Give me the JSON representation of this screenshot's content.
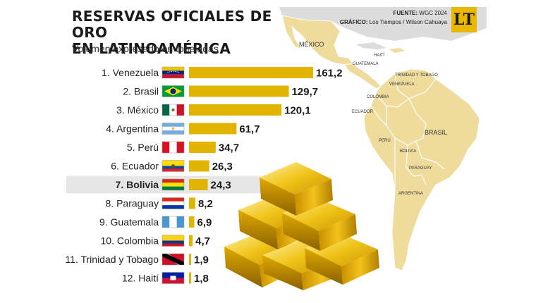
{
  "header": {
    "title_line1": "RESERVAS OFICIALES DE ORO",
    "title_line2": "EN LATINOAMÉRICA",
    "subtitle": "Volumen expresado en toneladas",
    "source_label": "FUENTE:",
    "source_value": "WGC 2024",
    "graphic_label": "GRÁFICO:",
    "graphic_value": "Los Tiempos / Wilson Cahuaya",
    "logo_text": "LT"
  },
  "map_labels": {
    "mexico": "MÉXICO",
    "guatemala": "GUATEMALA",
    "haiti": "HAITÍ",
    "trinidad": "TRINIDAD Y TOBAGO",
    "venezuela": "VENEZUELA",
    "colombia": "COLOMBIA",
    "ecuador": "ECUADOR",
    "peru": "PERÚ",
    "brasil": "BRASIL",
    "bolivia": "BOLIVIA",
    "paraguay": "PARAGUAY",
    "argentina": "ARGENTINA"
  },
  "colors": {
    "bar": "#e0b400",
    "highlight_row": "#e6e6e6",
    "map_land": "#efdc9c",
    "map_stroke": "#ffffff",
    "other_land": "#dcdcdc",
    "gold_dark": "#a67c00",
    "gold_light": "#ffe680"
  },
  "chart_data": {
    "type": "bar",
    "orientation": "horizontal",
    "title": "RESERVAS OFICIALES DE ORO EN LATINOAMÉRICA",
    "subtitle": "Volumen expresado en toneladas",
    "unit": "toneladas",
    "highlight": "7. Bolivia",
    "categories": [
      "1. Venezuela",
      "2. Brasil",
      "3. México",
      "4. Argentina",
      "5. Perú",
      "6. Ecuador",
      "7. Bolivia",
      "8. Paraguay",
      "9. Guatemala",
      "10. Colombia",
      "11. Trinidad y Tobago",
      "12. Haití"
    ],
    "values": [
      161.2,
      129.7,
      120.1,
      61.7,
      34.7,
      26.3,
      24.3,
      8.2,
      6.9,
      4.7,
      1.9,
      1.8
    ],
    "value_labels": [
      "161,2",
      "129,7",
      "120,1",
      "61,7",
      "34,7",
      "26,3",
      "24,3",
      "8,2",
      "6,9",
      "4,7",
      "1,9",
      "1,8"
    ],
    "flags": [
      "venezuela",
      "brasil",
      "mexico",
      "argentina",
      "peru",
      "ecuador",
      "bolivia",
      "paraguay",
      "guatemala",
      "colombia",
      "trinidad-y-tobago",
      "haiti"
    ],
    "xlim": [
      0,
      170
    ]
  }
}
